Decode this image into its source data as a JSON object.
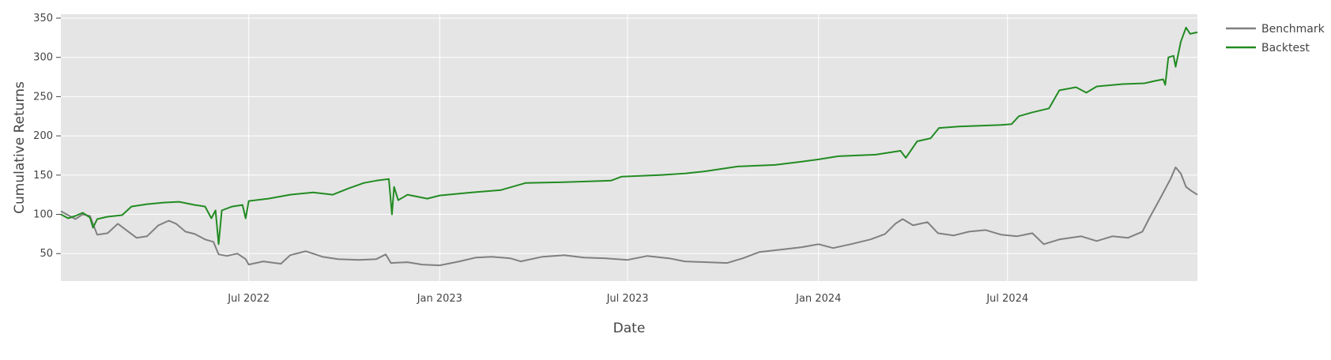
{
  "chart_data": {
    "type": "line",
    "xlabel": "Date",
    "ylabel": "Cumulative Returns",
    "x_range": [
      "2022-01-01",
      "2024-12-31"
    ],
    "ylim": [
      15,
      355
    ],
    "y_ticks": [
      50,
      100,
      150,
      200,
      250,
      300,
      350
    ],
    "x_ticks": [
      {
        "date": "2022-07-01",
        "label": "Jul 2022"
      },
      {
        "date": "2023-01-01",
        "label": "Jan 2023"
      },
      {
        "date": "2023-07-01",
        "label": "Jul 2023"
      },
      {
        "date": "2024-01-01",
        "label": "Jan 2024"
      },
      {
        "date": "2024-07-01",
        "label": "Jul 2024"
      }
    ],
    "grid": true,
    "legend_position": "top-right",
    "series": [
      {
        "name": "Benchmark",
        "color": "#808080",
        "points": [
          [
            "2022-01-01",
            104
          ],
          [
            "2022-01-08",
            99
          ],
          [
            "2022-01-15",
            94
          ],
          [
            "2022-01-22",
            100
          ],
          [
            "2022-01-29",
            98
          ],
          [
            "2022-02-05",
            74
          ],
          [
            "2022-02-15",
            76
          ],
          [
            "2022-02-25",
            88
          ],
          [
            "2022-03-05",
            80
          ],
          [
            "2022-03-15",
            70
          ],
          [
            "2022-03-25",
            72
          ],
          [
            "2022-04-05",
            86
          ],
          [
            "2022-04-15",
            92
          ],
          [
            "2022-04-22",
            88
          ],
          [
            "2022-05-01",
            78
          ],
          [
            "2022-05-10",
            75
          ],
          [
            "2022-05-20",
            68
          ],
          [
            "2022-05-28",
            65
          ],
          [
            "2022-06-02",
            49
          ],
          [
            "2022-06-10",
            47
          ],
          [
            "2022-06-20",
            50
          ],
          [
            "2022-06-28",
            43
          ],
          [
            "2022-07-01",
            36
          ],
          [
            "2022-07-15",
            40
          ],
          [
            "2022-08-01",
            37
          ],
          [
            "2022-08-10",
            48
          ],
          [
            "2022-08-25",
            53
          ],
          [
            "2022-09-10",
            46
          ],
          [
            "2022-09-25",
            43
          ],
          [
            "2022-10-15",
            42
          ],
          [
            "2022-11-01",
            43
          ],
          [
            "2022-11-10",
            49
          ],
          [
            "2022-11-15",
            38
          ],
          [
            "2022-12-01",
            39
          ],
          [
            "2022-12-15",
            36
          ],
          [
            "2023-01-01",
            35
          ],
          [
            "2023-01-20",
            40
          ],
          [
            "2023-02-05",
            45
          ],
          [
            "2023-02-20",
            46
          ],
          [
            "2023-03-10",
            44
          ],
          [
            "2023-03-20",
            40
          ],
          [
            "2023-04-10",
            46
          ],
          [
            "2023-05-01",
            48
          ],
          [
            "2023-05-20",
            45
          ],
          [
            "2023-06-10",
            44
          ],
          [
            "2023-07-01",
            42
          ],
          [
            "2023-07-20",
            47
          ],
          [
            "2023-08-10",
            44
          ],
          [
            "2023-08-25",
            40
          ],
          [
            "2023-09-15",
            39
          ],
          [
            "2023-10-05",
            38
          ],
          [
            "2023-10-20",
            44
          ],
          [
            "2023-11-05",
            52
          ],
          [
            "2023-11-25",
            55
          ],
          [
            "2023-12-15",
            58
          ],
          [
            "2024-01-01",
            62
          ],
          [
            "2024-01-15",
            57
          ],
          [
            "2024-02-01",
            62
          ],
          [
            "2024-02-20",
            68
          ],
          [
            "2024-03-05",
            75
          ],
          [
            "2024-03-15",
            88
          ],
          [
            "2024-03-22",
            94
          ],
          [
            "2024-04-01",
            86
          ],
          [
            "2024-04-15",
            90
          ],
          [
            "2024-04-25",
            76
          ],
          [
            "2024-05-10",
            73
          ],
          [
            "2024-05-25",
            78
          ],
          [
            "2024-06-10",
            80
          ],
          [
            "2024-06-25",
            74
          ],
          [
            "2024-07-10",
            72
          ],
          [
            "2024-07-25",
            76
          ],
          [
            "2024-08-05",
            62
          ],
          [
            "2024-08-20",
            68
          ],
          [
            "2024-09-10",
            72
          ],
          [
            "2024-09-25",
            66
          ],
          [
            "2024-10-10",
            72
          ],
          [
            "2024-10-25",
            70
          ],
          [
            "2024-11-08",
            78
          ],
          [
            "2024-11-15",
            96
          ],
          [
            "2024-11-25",
            120
          ],
          [
            "2024-12-05",
            145
          ],
          [
            "2024-12-10",
            160
          ],
          [
            "2024-12-15",
            152
          ],
          [
            "2024-12-20",
            135
          ],
          [
            "2024-12-25",
            130
          ],
          [
            "2024-12-31",
            125
          ]
        ]
      },
      {
        "name": "Backtest",
        "color": "#228B22",
        "points": [
          [
            "2022-01-01",
            100
          ],
          [
            "2022-01-08",
            95
          ],
          [
            "2022-01-15",
            98
          ],
          [
            "2022-01-22",
            102
          ],
          [
            "2022-01-29",
            96
          ],
          [
            "2022-02-01",
            83
          ],
          [
            "2022-02-05",
            94
          ],
          [
            "2022-02-15",
            97
          ],
          [
            "2022-03-01",
            99
          ],
          [
            "2022-03-10",
            110
          ],
          [
            "2022-03-25",
            113
          ],
          [
            "2022-04-10",
            115
          ],
          [
            "2022-04-25",
            116
          ],
          [
            "2022-05-10",
            112
          ],
          [
            "2022-05-20",
            110
          ],
          [
            "2022-05-26",
            95
          ],
          [
            "2022-05-30",
            105
          ],
          [
            "2022-06-02",
            62
          ],
          [
            "2022-06-05",
            105
          ],
          [
            "2022-06-15",
            110
          ],
          [
            "2022-06-25",
            112
          ],
          [
            "2022-06-28",
            95
          ],
          [
            "2022-07-01",
            117
          ],
          [
            "2022-07-20",
            120
          ],
          [
            "2022-08-10",
            125
          ],
          [
            "2022-09-01",
            128
          ],
          [
            "2022-09-20",
            125
          ],
          [
            "2022-10-05",
            133
          ],
          [
            "2022-10-20",
            140
          ],
          [
            "2022-11-01",
            143
          ],
          [
            "2022-11-13",
            145
          ],
          [
            "2022-11-16",
            100
          ],
          [
            "2022-11-18",
            135
          ],
          [
            "2022-11-22",
            118
          ],
          [
            "2022-12-01",
            125
          ],
          [
            "2022-12-20",
            120
          ],
          [
            "2023-01-01",
            124
          ],
          [
            "2023-02-01",
            128
          ],
          [
            "2023-03-01",
            131
          ],
          [
            "2023-03-25",
            140
          ],
          [
            "2023-05-01",
            141
          ],
          [
            "2023-06-15",
            143
          ],
          [
            "2023-06-25",
            148
          ],
          [
            "2023-08-01",
            150
          ],
          [
            "2023-08-25",
            152
          ],
          [
            "2023-09-15",
            155
          ],
          [
            "2023-10-15",
            161
          ],
          [
            "2023-11-20",
            163
          ],
          [
            "2023-12-15",
            167
          ],
          [
            "2024-01-01",
            170
          ],
          [
            "2024-01-20",
            174
          ],
          [
            "2024-02-25",
            176
          ],
          [
            "2024-03-20",
            181
          ],
          [
            "2024-03-25",
            172
          ],
          [
            "2024-04-05",
            193
          ],
          [
            "2024-04-18",
            197
          ],
          [
            "2024-04-26",
            210
          ],
          [
            "2024-05-15",
            212
          ],
          [
            "2024-06-25",
            214
          ],
          [
            "2024-07-05",
            215
          ],
          [
            "2024-07-12",
            225
          ],
          [
            "2024-07-25",
            230
          ],
          [
            "2024-08-10",
            235
          ],
          [
            "2024-08-20",
            258
          ],
          [
            "2024-09-05",
            262
          ],
          [
            "2024-09-15",
            255
          ],
          [
            "2024-09-25",
            263
          ],
          [
            "2024-10-20",
            266
          ],
          [
            "2024-11-10",
            267
          ],
          [
            "2024-11-20",
            270
          ],
          [
            "2024-11-28",
            272
          ],
          [
            "2024-11-30",
            265
          ],
          [
            "2024-12-03",
            300
          ],
          [
            "2024-12-08",
            302
          ],
          [
            "2024-12-10",
            288
          ],
          [
            "2024-12-15",
            320
          ],
          [
            "2024-12-20",
            338
          ],
          [
            "2024-12-24",
            330
          ],
          [
            "2024-12-31",
            332
          ]
        ]
      }
    ]
  }
}
